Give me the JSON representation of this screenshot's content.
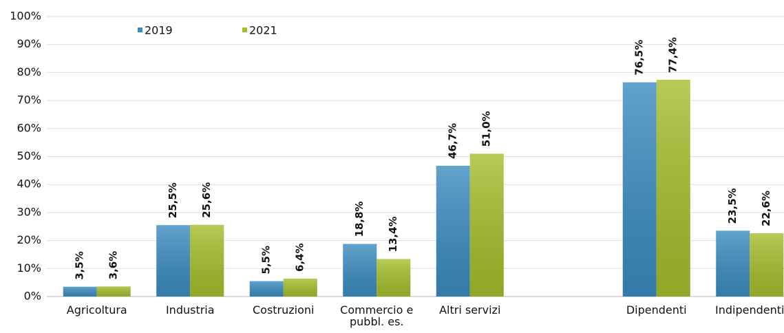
{
  "chart_data": {
    "type": "bar",
    "categories": [
      "Agricoltura",
      "Industria",
      "Costruzioni",
      "Commercio e pubbl. es.",
      "Altri servizi",
      null,
      "Dipendenti",
      "Indipendenti"
    ],
    "series": [
      {
        "name": "2019",
        "color": "#3b8cc0",
        "label_color": "#2f6285",
        "values": [
          3.5,
          25.5,
          5.5,
          18.8,
          46.7,
          null,
          76.5,
          23.5
        ],
        "value_labels": [
          "3,5%",
          "25,5%",
          "5,5%",
          "18,8%",
          "46,7%",
          null,
          "76,5%",
          "23,5%"
        ]
      },
      {
        "name": "2021",
        "color": "#a5be2c",
        "label_color": "#7f9a1c",
        "values": [
          3.6,
          25.6,
          6.4,
          13.4,
          51.0,
          null,
          77.4,
          22.6
        ],
        "value_labels": [
          "3,6%",
          "25,6%",
          "6,4%",
          "13,4%",
          "51,0%",
          null,
          "77,4%",
          "22,6%"
        ]
      }
    ],
    "ylim": [
      0,
      100
    ],
    "yticks": [
      {
        "value": 0,
        "label": "0%"
      },
      {
        "value": 10,
        "label": "10%"
      },
      {
        "value": 20,
        "label": "20%"
      },
      {
        "value": 30,
        "label": "30%"
      },
      {
        "value": 40,
        "label": "40%"
      },
      {
        "value": 50,
        "label": "50%"
      },
      {
        "value": 60,
        "label": "60%"
      },
      {
        "value": 70,
        "label": "70%"
      },
      {
        "value": 80,
        "label": "80%"
      },
      {
        "value": 90,
        "label": "90%"
      },
      {
        "value": 100,
        "label": "100%"
      }
    ],
    "grid": true,
    "legend": "top"
  }
}
